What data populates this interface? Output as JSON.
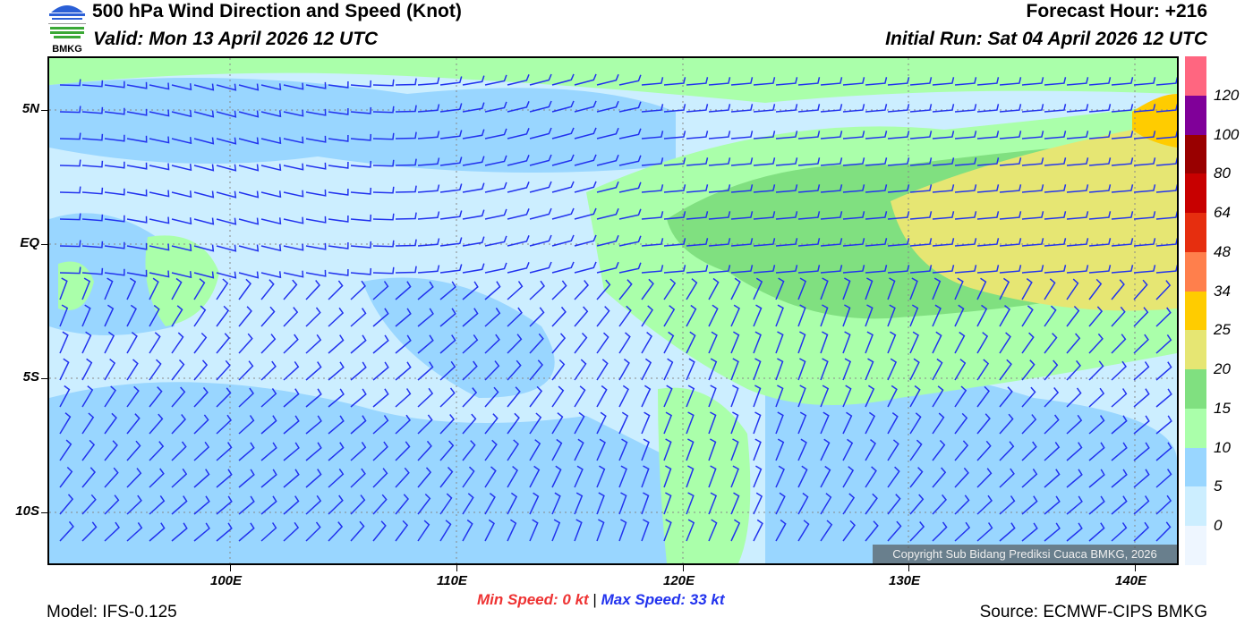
{
  "header": {
    "logo_text": "BMKG",
    "title": "500 hPa Wind Direction and Speed (Knot)",
    "valid": "Valid: Mon 13 April 2026 12 UTC",
    "forecast_hour": "Forecast Hour: +216",
    "initial_run": "Initial Run: Sat 04 April 2026 12 UTC"
  },
  "map": {
    "lon_range": [
      92,
      142
    ],
    "lat_range": [
      -12,
      7
    ],
    "lat_ticks": [
      "5N",
      "EQ",
      "5S",
      "10S"
    ],
    "lon_ticks": [
      "100E",
      "110E",
      "120E",
      "130E",
      "140E"
    ],
    "barb_color": "#2233ee",
    "copyright": "Copyright Sub Bidang Prediksi Cuaca BMKG, 2026"
  },
  "colorbar": {
    "labels": [
      "120",
      "100",
      "80",
      "64",
      "48",
      "34",
      "25",
      "20",
      "15",
      "10",
      "5",
      "0"
    ],
    "colors": [
      "#ff6680",
      "#800099",
      "#990000",
      "#c80000",
      "#e62e0f",
      "#ff7f4c",
      "#ffcc00",
      "#e6e673",
      "#80e080",
      "#aaffaa",
      "#99d6ff",
      "#cceeff",
      "#eef6ff"
    ]
  },
  "footer": {
    "min_speed": "Min Speed:   0 kt",
    "separator": "|",
    "max_speed": "Max Speed:  33 kt",
    "model": "Model: IFS-0.125",
    "source": "Source: ECMWF-CIPS BMKG"
  }
}
